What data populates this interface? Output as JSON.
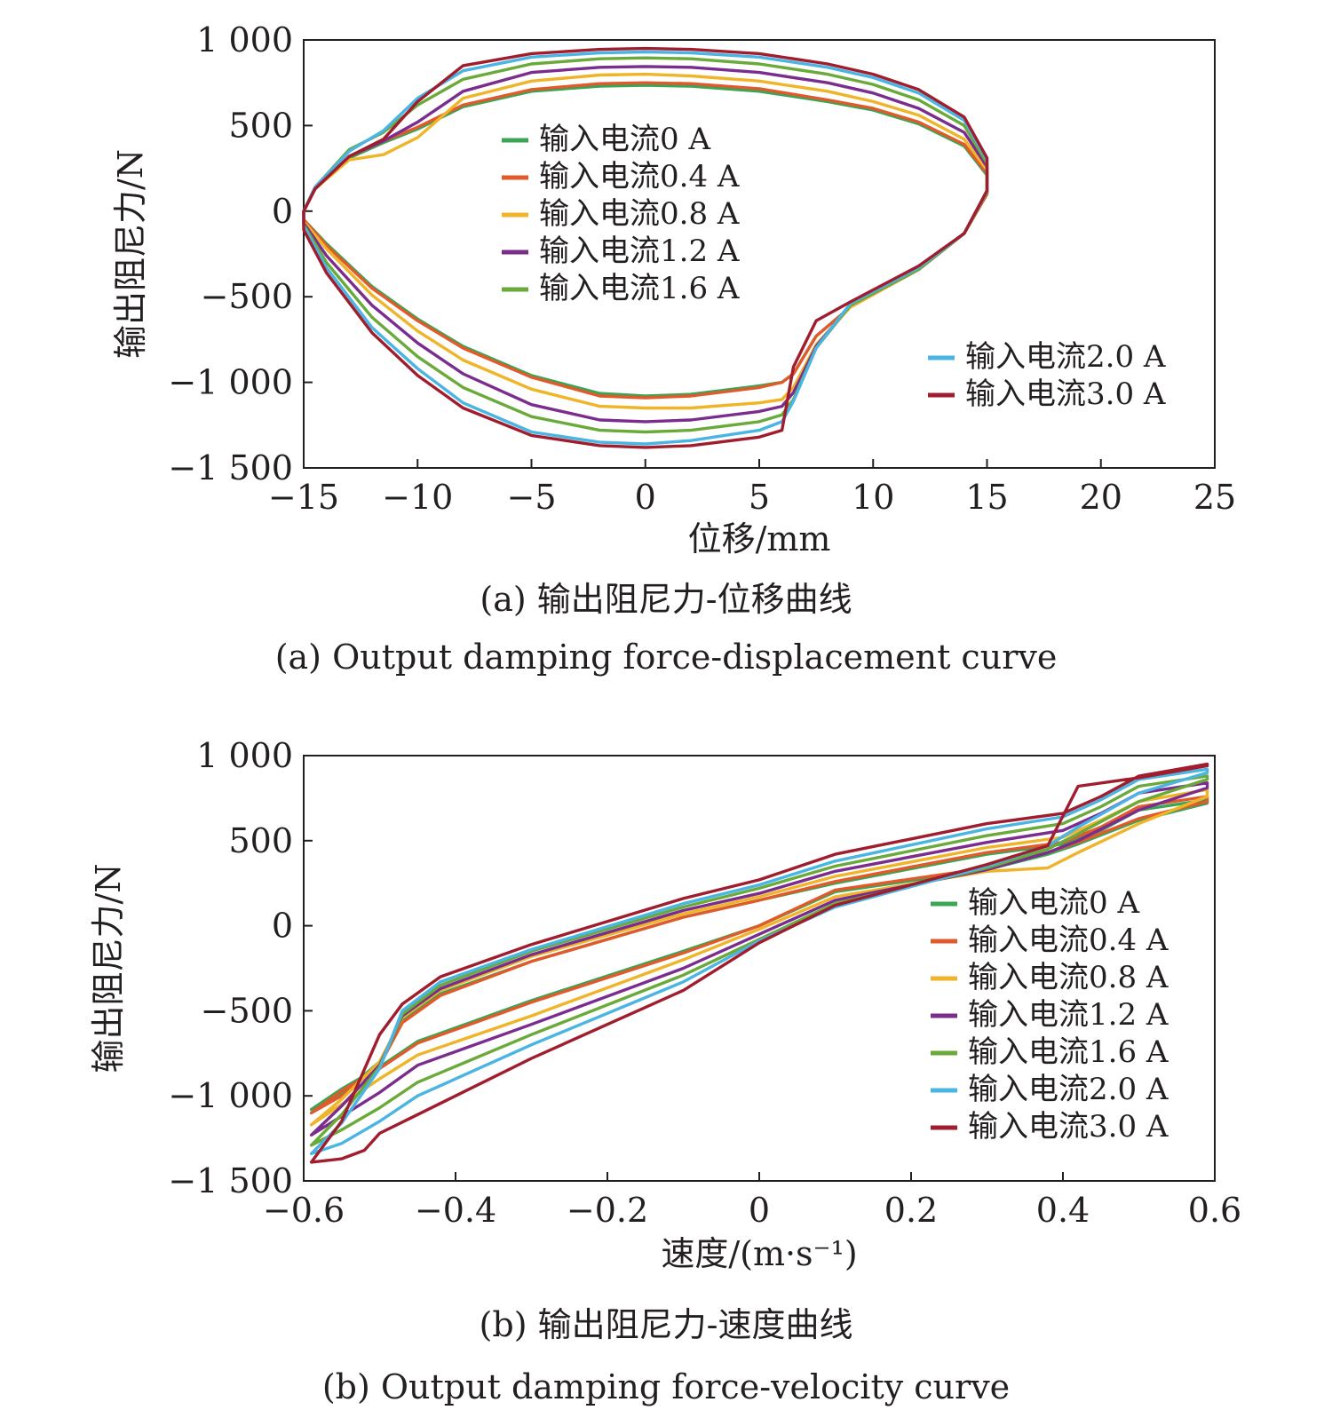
{
  "chart_data": [
    {
      "type": "line",
      "panel": "a",
      "xlabel": "位移/mm",
      "ylabel": "输出阻尼力/N",
      "caption_cn": "(a) 输出阻尼力-位移曲线",
      "caption_en": "(a) Output damping force-displacement curve",
      "xlim": [
        -15,
        25
      ],
      "ylim": [
        -1500,
        1000
      ],
      "xticks": [
        -15,
        -10,
        -5,
        0,
        5,
        10,
        15,
        20,
        25
      ],
      "yticks": [
        1000,
        500,
        0,
        -500,
        -1000,
        -1500
      ],
      "xtick_labels": [
        "−15",
        "−10",
        "−5",
        "0",
        "5",
        "10",
        "15",
        "20",
        "25"
      ],
      "ytick_labels": [
        "1 000",
        "500",
        "0",
        "−500",
        "−1 000",
        "−1 500"
      ],
      "grid": false,
      "legend_groups": [
        "middle-left",
        "bottom-right"
      ],
      "series": [
        {
          "name": "输入电流0 A",
          "color": "#3aa655",
          "legend_group": 0,
          "x": [
            -15,
            -14.5,
            -13,
            -11.5,
            -10,
            -8,
            -5,
            -2,
            0,
            2,
            5,
            8,
            10,
            12,
            14,
            15,
            15,
            14,
            12,
            9,
            7.5,
            6.5,
            6,
            5,
            2,
            0,
            -2,
            -5,
            -8,
            -10,
            -12,
            -14,
            -15,
            -15
          ],
          "y": [
            0,
            130,
            310,
            400,
            480,
            610,
            700,
            730,
            735,
            730,
            700,
            640,
            590,
            510,
            380,
            210,
            100,
            -130,
            -340,
            -560,
            -730,
            -950,
            -1000,
            -1020,
            -1070,
            -1080,
            -1065,
            -960,
            -790,
            -630,
            -440,
            -190,
            -50,
            0
          ]
        },
        {
          "name": "输入电流0.4 A",
          "color": "#e05a2b",
          "legend_group": 0,
          "x": [
            -15,
            -14.5,
            -13,
            -11.5,
            -10,
            -8,
            -5,
            -2,
            0,
            2,
            5,
            8,
            10,
            12,
            14,
            15,
            15,
            14,
            12,
            9,
            7.5,
            6.5,
            6,
            5,
            2,
            0,
            -2,
            -5,
            -8,
            -10,
            -12,
            -14,
            -15,
            -15
          ],
          "y": [
            0,
            130,
            320,
            410,
            490,
            620,
            710,
            745,
            750,
            745,
            715,
            650,
            600,
            520,
            390,
            220,
            100,
            -130,
            -340,
            -560,
            -730,
            -950,
            -1000,
            -1030,
            -1080,
            -1090,
            -1080,
            -970,
            -800,
            -640,
            -450,
            -200,
            -50,
            0
          ]
        },
        {
          "name": "输入电流0.8 A",
          "color": "#f0b429",
          "legend_group": 0,
          "x": [
            -15,
            -14.5,
            -13,
            -11.5,
            -10,
            -8,
            -5,
            -2,
            0,
            2,
            5,
            8,
            10,
            12,
            14,
            15,
            15,
            14,
            12,
            9,
            7.5,
            6.5,
            6,
            5,
            2,
            0,
            -2,
            -5,
            -8,
            -10,
            -12,
            -14,
            -15,
            -15
          ],
          "y": [
            0,
            130,
            300,
            330,
            430,
            660,
            760,
            795,
            800,
            790,
            760,
            700,
            640,
            560,
            420,
            240,
            110,
            -130,
            -340,
            -560,
            -780,
            -1030,
            -1100,
            -1120,
            -1150,
            -1150,
            -1140,
            -1040,
            -870,
            -700,
            -490,
            -220,
            -60,
            0
          ]
        },
        {
          "name": "输入电流1.2 A",
          "color": "#7b2d8e",
          "legend_group": 0,
          "x": [
            -15,
            -14.5,
            -13,
            -11.5,
            -10,
            -8,
            -5,
            -2,
            0,
            2,
            5,
            8,
            10,
            12,
            14,
            15,
            15,
            14,
            12,
            9,
            7.5,
            6.5,
            6,
            5,
            2,
            0,
            -2,
            -5,
            -8,
            -10,
            -12,
            -14,
            -15,
            -15
          ],
          "y": [
            0,
            130,
            320,
            410,
            520,
            700,
            810,
            840,
            845,
            840,
            810,
            750,
            690,
            600,
            460,
            260,
            110,
            -130,
            -340,
            -550,
            -790,
            -1060,
            -1140,
            -1170,
            -1220,
            -1230,
            -1220,
            -1130,
            -950,
            -770,
            -550,
            -260,
            -70,
            0
          ]
        },
        {
          "name": "输入电流1.6 A",
          "color": "#6aaa3a",
          "legend_group": 0,
          "x": [
            -15,
            -14.5,
            -13,
            -11.5,
            -10,
            -8,
            -5,
            -2,
            0,
            2,
            5,
            8,
            10,
            12,
            14,
            15,
            15,
            14,
            12,
            9,
            7.5,
            6.5,
            6,
            5,
            2,
            0,
            -2,
            -5,
            -8,
            -10,
            -12,
            -14,
            -15,
            -15
          ],
          "y": [
            0,
            140,
            360,
            460,
            620,
            770,
            860,
            890,
            895,
            890,
            860,
            800,
            740,
            650,
            500,
            280,
            110,
            -130,
            -340,
            -550,
            -800,
            -1100,
            -1190,
            -1230,
            -1280,
            -1290,
            -1280,
            -1200,
            -1030,
            -850,
            -620,
            -300,
            -80,
            0
          ]
        },
        {
          "name": "输入电流2.0 A",
          "color": "#4ab5e3",
          "legend_group": 1,
          "x": [
            -15,
            -14.5,
            -13,
            -11.5,
            -10,
            -8,
            -5,
            -2,
            0,
            2,
            5,
            8,
            10,
            12,
            14,
            15,
            15,
            14,
            12,
            9,
            7.5,
            6.5,
            6,
            5,
            2,
            0,
            -2,
            -5,
            -8,
            -10,
            -12,
            -14,
            -15,
            -15
          ],
          "y": [
            0,
            140,
            350,
            470,
            660,
            820,
            900,
            925,
            930,
            925,
            900,
            840,
            780,
            690,
            530,
            300,
            120,
            -130,
            -330,
            -540,
            -800,
            -1110,
            -1230,
            -1280,
            -1340,
            -1360,
            -1350,
            -1290,
            -1120,
            -920,
            -680,
            -330,
            -90,
            0
          ]
        },
        {
          "name": "输入电流3.0 A",
          "color": "#a01d2e",
          "legend_group": 1,
          "x": [
            -15,
            -14.5,
            -13,
            -11.5,
            -10,
            -8,
            -5,
            -2,
            0,
            2,
            5,
            8,
            10,
            12,
            14,
            15,
            15,
            14,
            12,
            9,
            7.5,
            6.5,
            6,
            5,
            2,
            0,
            -2,
            -5,
            -8,
            -10,
            -12,
            -14,
            -15,
            -15
          ],
          "y": [
            0,
            130,
            320,
            420,
            640,
            850,
            920,
            945,
            950,
            945,
            920,
            860,
            800,
            710,
            550,
            310,
            120,
            -130,
            -320,
            -530,
            -640,
            -910,
            -1280,
            -1320,
            -1370,
            -1380,
            -1370,
            -1310,
            -1150,
            -960,
            -710,
            -360,
            -110,
            0
          ]
        }
      ]
    },
    {
      "type": "line",
      "panel": "b",
      "xlabel": "速度/(m·s⁻¹)",
      "ylabel": "输出阻尼力/N",
      "caption_cn": "(b) 输出阻尼力-速度曲线",
      "caption_en": "(b) Output damping force-velocity curve",
      "xlim": [
        -0.6,
        0.6
      ],
      "ylim": [
        -1500,
        1000
      ],
      "xticks": [
        -0.6,
        -0.4,
        -0.2,
        0,
        0.2,
        0.4,
        0.6
      ],
      "yticks": [
        1000,
        500,
        0,
        -500,
        -1000,
        -1500
      ],
      "xtick_labels": [
        "−0.6",
        "−0.4",
        "−0.2",
        "0",
        "0.2",
        "0.4",
        "0.6"
      ],
      "ytick_labels": [
        "1 000",
        "500",
        "0",
        "−500",
        "−1 000",
        "−1 500"
      ],
      "grid": false,
      "legend_groups": [
        "bottom-right"
      ],
      "series": [
        {
          "name": "输入电流0 A",
          "color": "#3aa655",
          "legend_group": 0,
          "x": [
            -0.59,
            -0.55,
            -0.5,
            -0.45,
            -0.3,
            -0.1,
            0,
            0.1,
            0.3,
            0.38,
            0.42,
            0.5,
            0.59,
            0.59,
            0.5,
            0.45,
            0.4,
            0.3,
            0.1,
            0,
            -0.1,
            -0.3,
            -0.42,
            -0.47,
            -0.5,
            -0.55,
            -0.59
          ],
          "y": [
            -1080,
            -960,
            -830,
            -680,
            -440,
            -150,
            0,
            200,
            330,
            420,
            480,
            620,
            720,
            740,
            680,
            560,
            480,
            420,
            250,
            150,
            50,
            -210,
            -400,
            -560,
            -800,
            -990,
            -1080
          ]
        },
        {
          "name": "输入电流0.4 A",
          "color": "#e05a2b",
          "legend_group": 0,
          "x": [
            -0.59,
            -0.55,
            -0.5,
            -0.45,
            -0.3,
            -0.1,
            0,
            0.1,
            0.3,
            0.38,
            0.42,
            0.5,
            0.59,
            0.59,
            0.5,
            0.45,
            0.4,
            0.3,
            0.1,
            0,
            -0.1,
            -0.3,
            -0.42,
            -0.47,
            -0.5,
            -0.55,
            -0.59
          ],
          "y": [
            -1100,
            -970,
            -840,
            -690,
            -450,
            -160,
            0,
            210,
            340,
            430,
            490,
            630,
            730,
            760,
            700,
            580,
            490,
            430,
            260,
            150,
            50,
            -210,
            -410,
            -570,
            -820,
            -1000,
            -1100
          ]
        },
        {
          "name": "输入电流0.8 A",
          "color": "#f0b429",
          "legend_group": 0,
          "x": [
            -0.59,
            -0.55,
            -0.5,
            -0.45,
            -0.3,
            -0.1,
            0,
            0.1,
            0.3,
            0.38,
            0.42,
            0.5,
            0.59,
            0.59,
            0.5,
            0.45,
            0.4,
            0.3,
            0.1,
            0,
            -0.1,
            -0.3,
            -0.42,
            -0.47,
            -0.5,
            -0.55,
            -0.59
          ],
          "y": [
            -1170,
            -1050,
            -900,
            -760,
            -530,
            -200,
            -20,
            170,
            320,
            340,
            430,
            600,
            760,
            800,
            730,
            620,
            520,
            460,
            290,
            170,
            70,
            -180,
            -380,
            -540,
            -800,
            -1020,
            -1170
          ]
        },
        {
          "name": "输入电流1.2 A",
          "color": "#7b2d8e",
          "legend_group": 0,
          "x": [
            -0.59,
            -0.55,
            -0.5,
            -0.45,
            -0.3,
            -0.1,
            0,
            0.1,
            0.3,
            0.38,
            0.42,
            0.5,
            0.59,
            0.59,
            0.5,
            0.45,
            0.4,
            0.3,
            0.1,
            0,
            -0.1,
            -0.3,
            -0.42,
            -0.47,
            -0.5,
            -0.55,
            -0.59
          ],
          "y": [
            -1230,
            -1120,
            -980,
            -820,
            -580,
            -250,
            -50,
            150,
            330,
            430,
            500,
            680,
            810,
            840,
            780,
            660,
            560,
            490,
            320,
            190,
            90,
            -170,
            -370,
            -530,
            -820,
            -1060,
            -1230
          ]
        },
        {
          "name": "输入电流1.6 A",
          "color": "#6aaa3a",
          "legend_group": 0,
          "x": [
            -0.59,
            -0.55,
            -0.5,
            -0.45,
            -0.3,
            -0.1,
            0,
            0.1,
            0.3,
            0.38,
            0.42,
            0.5,
            0.59,
            0.59,
            0.5,
            0.45,
            0.4,
            0.3,
            0.1,
            0,
            -0.1,
            -0.3,
            -0.42,
            -0.47,
            -0.5,
            -0.55,
            -0.59
          ],
          "y": [
            -1290,
            -1200,
            -1070,
            -920,
            -640,
            -290,
            -80,
            130,
            340,
            450,
            540,
            730,
            860,
            880,
            820,
            700,
            600,
            530,
            350,
            220,
            110,
            -150,
            -350,
            -520,
            -830,
            -1110,
            -1290
          ]
        },
        {
          "name": "输入电流2.0 A",
          "color": "#4ab5e3",
          "legend_group": 0,
          "x": [
            -0.59,
            -0.55,
            -0.5,
            -0.45,
            -0.3,
            -0.1,
            0,
            0.1,
            0.3,
            0.38,
            0.42,
            0.5,
            0.59,
            0.59,
            0.5,
            0.45,
            0.4,
            0.3,
            0.1,
            0,
            -0.1,
            -0.3,
            -0.42,
            -0.47,
            -0.5,
            -0.55,
            -0.59
          ],
          "y": [
            -1340,
            -1280,
            -1150,
            -1000,
            -700,
            -330,
            -90,
            110,
            350,
            470,
            580,
            780,
            900,
            920,
            860,
            740,
            640,
            570,
            380,
            240,
            130,
            -140,
            -330,
            -500,
            -840,
            -1160,
            -1340
          ]
        },
        {
          "name": "输入电流3.0 A",
          "color": "#a01d2e",
          "legend_group": 0,
          "x": [
            -0.59,
            -0.55,
            -0.52,
            -0.5,
            -0.45,
            -0.3,
            -0.1,
            0,
            0.1,
            0.3,
            0.38,
            0.42,
            0.5,
            0.59,
            0.59,
            0.5,
            0.45,
            0.4,
            0.3,
            0.1,
            0,
            -0.1,
            -0.3,
            -0.42,
            -0.47,
            -0.5,
            -0.55,
            -0.59
          ],
          "y": [
            -1390,
            -1370,
            -1320,
            -1220,
            -1110,
            -780,
            -380,
            -100,
            120,
            360,
            470,
            820,
            870,
            940,
            950,
            880,
            760,
            660,
            600,
            420,
            270,
            160,
            -110,
            -300,
            -460,
            -640,
            -1150,
            -1390
          ]
        }
      ]
    }
  ]
}
